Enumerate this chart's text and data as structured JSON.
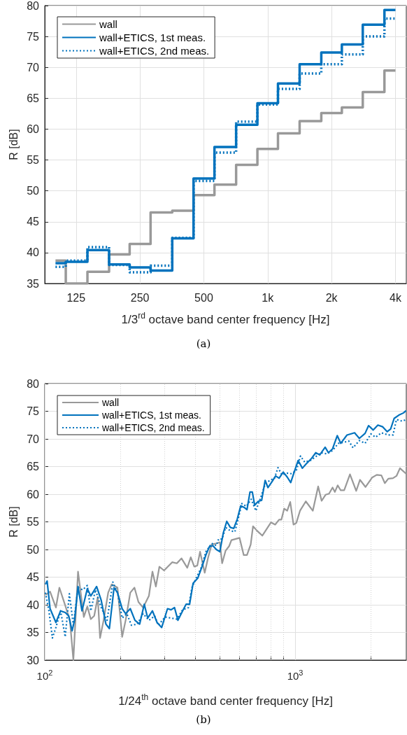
{
  "chart_data": [
    {
      "type": "step",
      "ylabel": "R [dB]",
      "xlabel": "1/3$^{rd}$ octave band center frequency [Hz]",
      "annotations": [
        "(a)"
      ],
      "log": "x",
      "grid": true,
      "legend": "top left",
      "xlim": [
        89,
        4500
      ],
      "xticks": [
        125,
        250,
        500,
        {
          "value": 1000,
          "label": "1k"
        },
        {
          "value": 2000,
          "label": "2k"
        },
        {
          "value": 4000,
          "label": "4k"
        }
      ],
      "ylim": [
        35,
        80
      ],
      "yticks": [
        35,
        40,
        45,
        50,
        55,
        60,
        65,
        70,
        75,
        80
      ],
      "x": [
        100,
        125,
        160,
        200,
        250,
        315,
        400,
        500,
        630,
        800,
        1000,
        1250,
        1600,
        2000,
        2500,
        3150,
        4000
      ],
      "series": [
        {
          "name": "wall",
          "color": "#999999",
          "line_style": "solid",
          "values": [
            38.7,
            35.0,
            36.9,
            39.7,
            41.4,
            46.5,
            46.8,
            49.3,
            51.0,
            54.2,
            56.8,
            59.3,
            61.3,
            62.6,
            63.5,
            66.0,
            69.5
          ]
        },
        {
          "name": "wall+ETICS, 1st meas.",
          "color": "#0072bd",
          "line_style": "solid",
          "values": [
            38.3,
            38.5,
            40.4,
            38.1,
            37.6,
            37.1,
            42.3,
            52.0,
            57.1,
            60.7,
            64.2,
            67.4,
            70.5,
            72.4,
            73.7,
            76.9,
            79.3
          ]
        },
        {
          "name": "wall+ETICS, 2nd meas.",
          "color": "#0072bd",
          "line_style": "dotted",
          "values": [
            37.7,
            38.7,
            40.9,
            38.0,
            36.8,
            37.9,
            42.4,
            51.6,
            56.2,
            61.2,
            64.0,
            66.5,
            69.0,
            70.5,
            72.1,
            75.0,
            77.9
          ]
        }
      ]
    },
    {
      "type": "line",
      "ylabel": "R [dB]",
      "xlabel": "1/24$^{th}$ octave band center frequency [Hz]",
      "annotations": [
        "(b)"
      ],
      "log": "x",
      "grid": true,
      "legend": "top left",
      "xlim": [
        100,
        2780
      ],
      "xticks": [
        {
          "value": 100,
          "label": "10$^{2}$"
        },
        {
          "value": 200,
          "label": null
        },
        {
          "value": 300,
          "label": null
        },
        {
          "value": 400,
          "label": null
        },
        {
          "value": 500,
          "label": null
        },
        {
          "value": 600,
          "label": null
        },
        {
          "value": 700,
          "label": null
        },
        {
          "value": 800,
          "label": null
        },
        {
          "value": 900,
          "label": null
        },
        {
          "value": 1000,
          "label": "10$^{3}$"
        },
        {
          "value": 2000,
          "label": null
        }
      ],
      "ylim": [
        30,
        80
      ],
      "yticks": [
        30,
        35,
        40,
        45,
        50,
        55,
        60,
        65,
        70,
        75,
        80
      ],
      "series": [
        {
          "name": "wall",
          "color": "#999999",
          "line_style": "solid",
          "x": [
            100.6,
            105.0,
            110.8,
            114.4,
            120.7,
            126.0,
            130.1,
            135.8,
            143.2,
            147.9,
            152.7,
            157.6,
            162.8,
            166.3,
            171.8,
            179.2,
            185.1,
            195.2,
            203.8,
            210.4,
            219.6,
            228.2,
            236.7,
            247.1,
            260.6,
            269.2,
            277.9,
            287,
            299.5,
            322.8,
            336.9,
            351.6,
            370.9,
            383,
            395.5,
            406.6,
            417.2,
            435.4,
            449.6,
            464.2,
            484.4,
            500.3,
            511,
            527.8,
            544.9,
            556.7,
            599.9,
            623.4,
            642.3,
            664.6,
            678.9,
            704.1,
            739.7,
            800.5,
            832,
            862.9,
            881.5,
            904.3,
            929.8,
            956.1,
            985.1,
            1010.8,
            1045.9,
            1103.2,
            1176.6,
            1236,
            1276,
            1323,
            1366,
            1411,
            1441,
            1479,
            1521,
            1570,
            1656,
            1754,
            1816,
            1911,
            2029,
            2118,
            2211,
            2282,
            2356,
            2459,
            2540,
            2623,
            2774
          ],
          "values": [
            41.8,
            42.4,
            39.5,
            43.1,
            39.9,
            37.2,
            30.0,
            46.0,
            37.8,
            39.7,
            37.4,
            38.0,
            41.4,
            34.0,
            37.2,
            42.2,
            43.7,
            43.1,
            34.2,
            37.2,
            42.2,
            43.1,
            40.5,
            39.5,
            41.6,
            46.0,
            43.3,
            46.9,
            46.2,
            47.7,
            47.5,
            48.4,
            46.7,
            48.6,
            46.9,
            47.1,
            49.6,
            45.8,
            48.6,
            50.9,
            51.1,
            51.3,
            47.5,
            49.8,
            50.6,
            51.7,
            52.1,
            49.0,
            49.0,
            50.9,
            54.2,
            53.4,
            52.5,
            54.9,
            54.5,
            55.4,
            55.4,
            57.4,
            57.0,
            58.6,
            54.5,
            54.8,
            57.0,
            58.7,
            57.0,
            61.4,
            58.8,
            59.9,
            60.1,
            61.2,
            60.4,
            61.6,
            60.7,
            60.7,
            63.6,
            60.6,
            62.6,
            61.3,
            63.0,
            63.5,
            63.4,
            62.0,
            62.8,
            62.9,
            63.3,
            64.7,
            63.7
          ]
        },
        {
          "name": "wall+ETICS, 1st meas.",
          "color": "#0072bd",
          "line_style": "solid",
          "x": [
            100.6,
            102.2,
            105.0,
            110.8,
            115.7,
            120.7,
            124.6,
            128.6,
            131.5,
            135.8,
            140.8,
            147.9,
            152.7,
            161.1,
            168.1,
            175.5,
            181.2,
            189.1,
            195.2,
            203.8,
            210.4,
            219.6,
            229.2,
            239.3,
            249.7,
            257.8,
            269.2,
            280.9,
            293.1,
            309.3,
            319.4,
            329.8,
            340.4,
            355.3,
            366.9,
            378.9,
            391.3,
            408.3,
            426.3,
            440.1,
            454.5,
            469.2,
            484.4,
            500.3,
            516.6,
            533.3,
            550.8,
            568.7,
            587.3,
            606.4,
            626.1,
            642.3,
            660.3,
            674.7,
            689.2,
            711.7,
            735,
            759,
            778.8,
            809.3,
            835.6,
            862.9,
            896.7,
            929.8,
            960.3,
            991.5,
            1028,
            1069,
            1103.2,
            1164,
            1209,
            1254,
            1318,
            1358,
            1411,
            1473,
            1521,
            1611,
            1728,
            1805,
            1903,
            1965,
            2051,
            2141,
            2234,
            2332,
            2407,
            2486,
            2595,
            2709,
            2774
          ],
          "values": [
            43.7,
            44.3,
            39.3,
            36.8,
            38.9,
            38.6,
            38.0,
            35.3,
            37.2,
            43.3,
            38.9,
            42.9,
            41.6,
            43.3,
            40.8,
            36.5,
            35.7,
            43.1,
            42.2,
            39.3,
            38.4,
            39.3,
            37.2,
            36.5,
            40.1,
            37.6,
            38.9,
            36.8,
            35.9,
            39.3,
            39.1,
            39.5,
            37.2,
            38.9,
            40.1,
            40.1,
            43.9,
            44.8,
            47.1,
            49.0,
            50.5,
            50.7,
            50.0,
            49.6,
            53.0,
            55.1,
            54.0,
            53.8,
            55.5,
            57.9,
            57.6,
            57.2,
            60.4,
            60.4,
            58.0,
            58.7,
            58.9,
            62.5,
            61.2,
            62.3,
            63.3,
            62.9,
            64.0,
            63.1,
            62.1,
            64.0,
            66.1,
            64.7,
            65.4,
            66.5,
            67.5,
            67.1,
            68.5,
            67.5,
            68.2,
            70.6,
            69.2,
            70.7,
            71.1,
            70.1,
            71.0,
            72.4,
            71.6,
            72.5,
            72.2,
            71.3,
            71.8,
            73.7,
            74.3,
            74.7,
            75.1
          ]
        },
        {
          "name": "wall+ETICS, 2nd meas.",
          "color": "#0072bd",
          "line_style": "dotted",
          "x": [
            100.6,
            103.9,
            107.3,
            110.8,
            115.7,
            120.7,
            125.4,
            130.1,
            135.8,
            141.7,
            147.9,
            152.7,
            159.4,
            168.1,
            177.4,
            187.1,
            195.2,
            203.8,
            212.7,
            222,
            234.2,
            247.1,
            260.6,
            274.9,
            283.9,
            302.7,
            319.4,
            336.9,
            355.3,
            374.9,
            387.1,
            404.1,
            421.7,
            440.1,
            464.2,
            484.4,
            495,
            511,
            527.8,
            550.8,
            574.8,
            587.3,
            613,
            639.4,
            667.5,
            696.7,
            727.2,
            759,
            792,
            826.9,
            854.1,
            885.4,
            929.8,
            970.5,
            1013,
            1050.5,
            1092,
            1152,
            1202,
            1268,
            1338,
            1411,
            1489,
            1570,
            1639,
            1703,
            1805,
            1903,
            2008,
            2096,
            2211,
            2356,
            2459,
            2540,
            2680,
            2774
          ],
          "values": [
            42.2,
            38.9,
            34.0,
            35.9,
            38.9,
            34.2,
            42.0,
            36.3,
            43.1,
            42.7,
            43.5,
            38.9,
            42.7,
            39.5,
            37.2,
            44.1,
            42.2,
            37.6,
            38.4,
            36.3,
            36.5,
            38.4,
            37.2,
            38.0,
            36.3,
            37.8,
            37.6,
            37.4,
            39.1,
            39.5,
            43.1,
            45.0,
            46.7,
            49.6,
            51.1,
            50.7,
            51.9,
            51.9,
            54.0,
            53.4,
            53.2,
            54.9,
            58.3,
            57.8,
            59.1,
            57.0,
            59.3,
            61.8,
            62.5,
            62.9,
            64.8,
            63.5,
            63.8,
            63.7,
            64.4,
            66.9,
            65.8,
            66.1,
            66.7,
            67.5,
            67.3,
            67.9,
            69.2,
            69.4,
            69.6,
            68.4,
            69.7,
            69.2,
            70.9,
            70.3,
            71.1,
            70.7,
            70.7,
            73.5,
            73.2,
            73.5
          ]
        }
      ]
    }
  ]
}
